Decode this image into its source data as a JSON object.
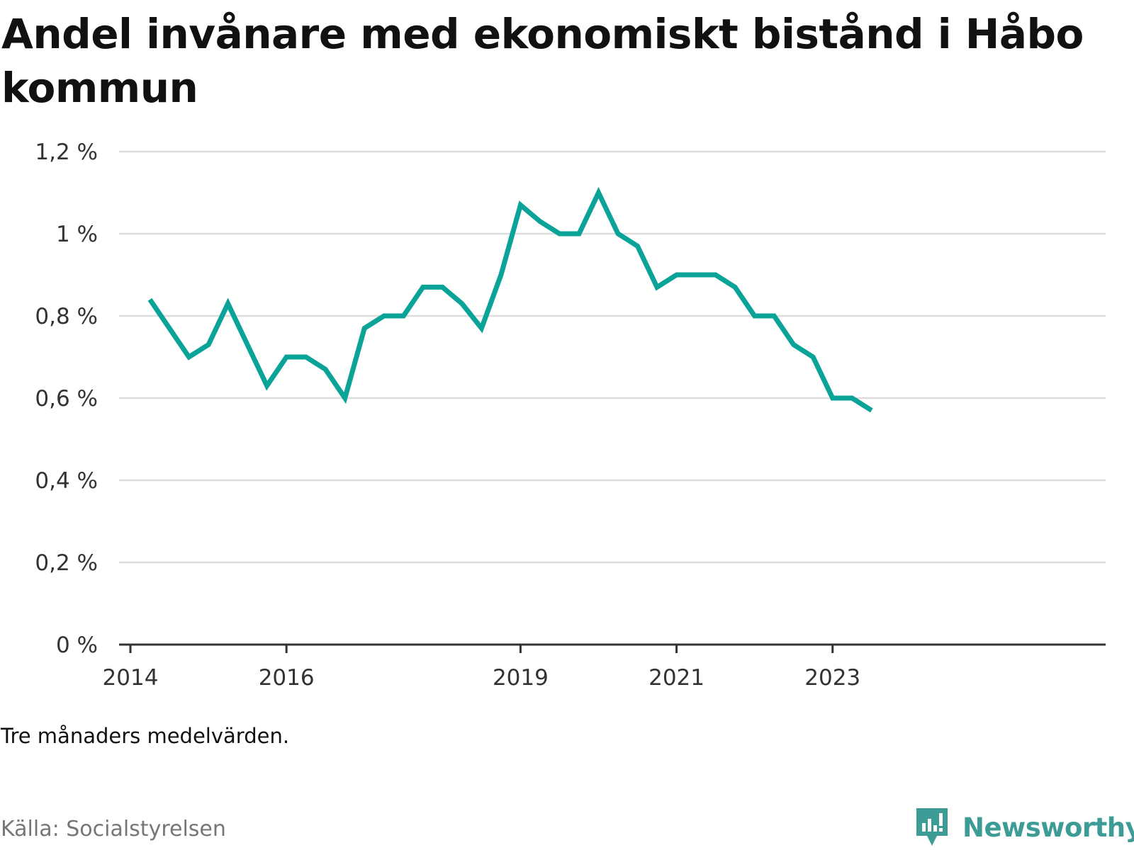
{
  "title": "Andel invånare med ekonomiskt bistånd i Håbo kommun",
  "note": "Tre månaders medelvärden.",
  "source": "Källa: Socialstyrelsen",
  "brand": {
    "name": "Newsworthy",
    "icon": "newsworthy-logo-icon",
    "color": "#3e9c96"
  },
  "colors": {
    "line": "#0aa398",
    "grid": "#dddddd",
    "axis": "#333333"
  },
  "chart_data": {
    "type": "line",
    "title": "Andel invånare med ekonomiskt bistånd i Håbo kommun",
    "xlabel": "",
    "ylabel": "",
    "ylim": [
      0,
      1.2
    ],
    "grid": true,
    "y_ticks": [
      0,
      0.2,
      0.4,
      0.6,
      0.8,
      1.0,
      1.2
    ],
    "y_tick_labels": [
      "0 %",
      "0,2 %",
      "0,4 %",
      "0,6 %",
      "0,8 %",
      "1 %",
      "1,2 %"
    ],
    "x_ticks": [
      2014,
      2016,
      2019,
      2021,
      2023
    ],
    "x_tick_labels": [
      "2014",
      "2016",
      "2019",
      "2021",
      "2023"
    ],
    "xlim": [
      2014,
      2026.5
    ],
    "series": [
      {
        "name": "",
        "color": "#0aa398",
        "x": [
          2014.25,
          2014.5,
          2014.75,
          2015.0,
          2015.25,
          2015.5,
          2015.75,
          2016.0,
          2016.25,
          2016.5,
          2016.75,
          2017.0,
          2017.25,
          2017.5,
          2017.75,
          2018.0,
          2018.25,
          2018.5,
          2018.75,
          2019.0,
          2019.25,
          2019.5,
          2019.75,
          2020.0,
          2020.25,
          2020.5,
          2020.75,
          2021.0,
          2021.25,
          2021.5,
          2021.75,
          2022.0,
          2022.25,
          2022.5,
          2022.75,
          2023.0,
          2023.25,
          2023.5
        ],
        "values": [
          0.84,
          0.77,
          0.7,
          0.73,
          0.83,
          0.73,
          0.63,
          0.7,
          0.7,
          0.67,
          0.6,
          0.77,
          0.8,
          0.8,
          0.87,
          0.87,
          0.83,
          0.77,
          0.9,
          1.07,
          1.03,
          1.0,
          1.0,
          1.1,
          1.0,
          0.97,
          0.87,
          0.9,
          0.9,
          0.9,
          0.87,
          0.8,
          0.8,
          0.73,
          0.7,
          0.6,
          0.6,
          0.57
        ]
      }
    ]
  }
}
